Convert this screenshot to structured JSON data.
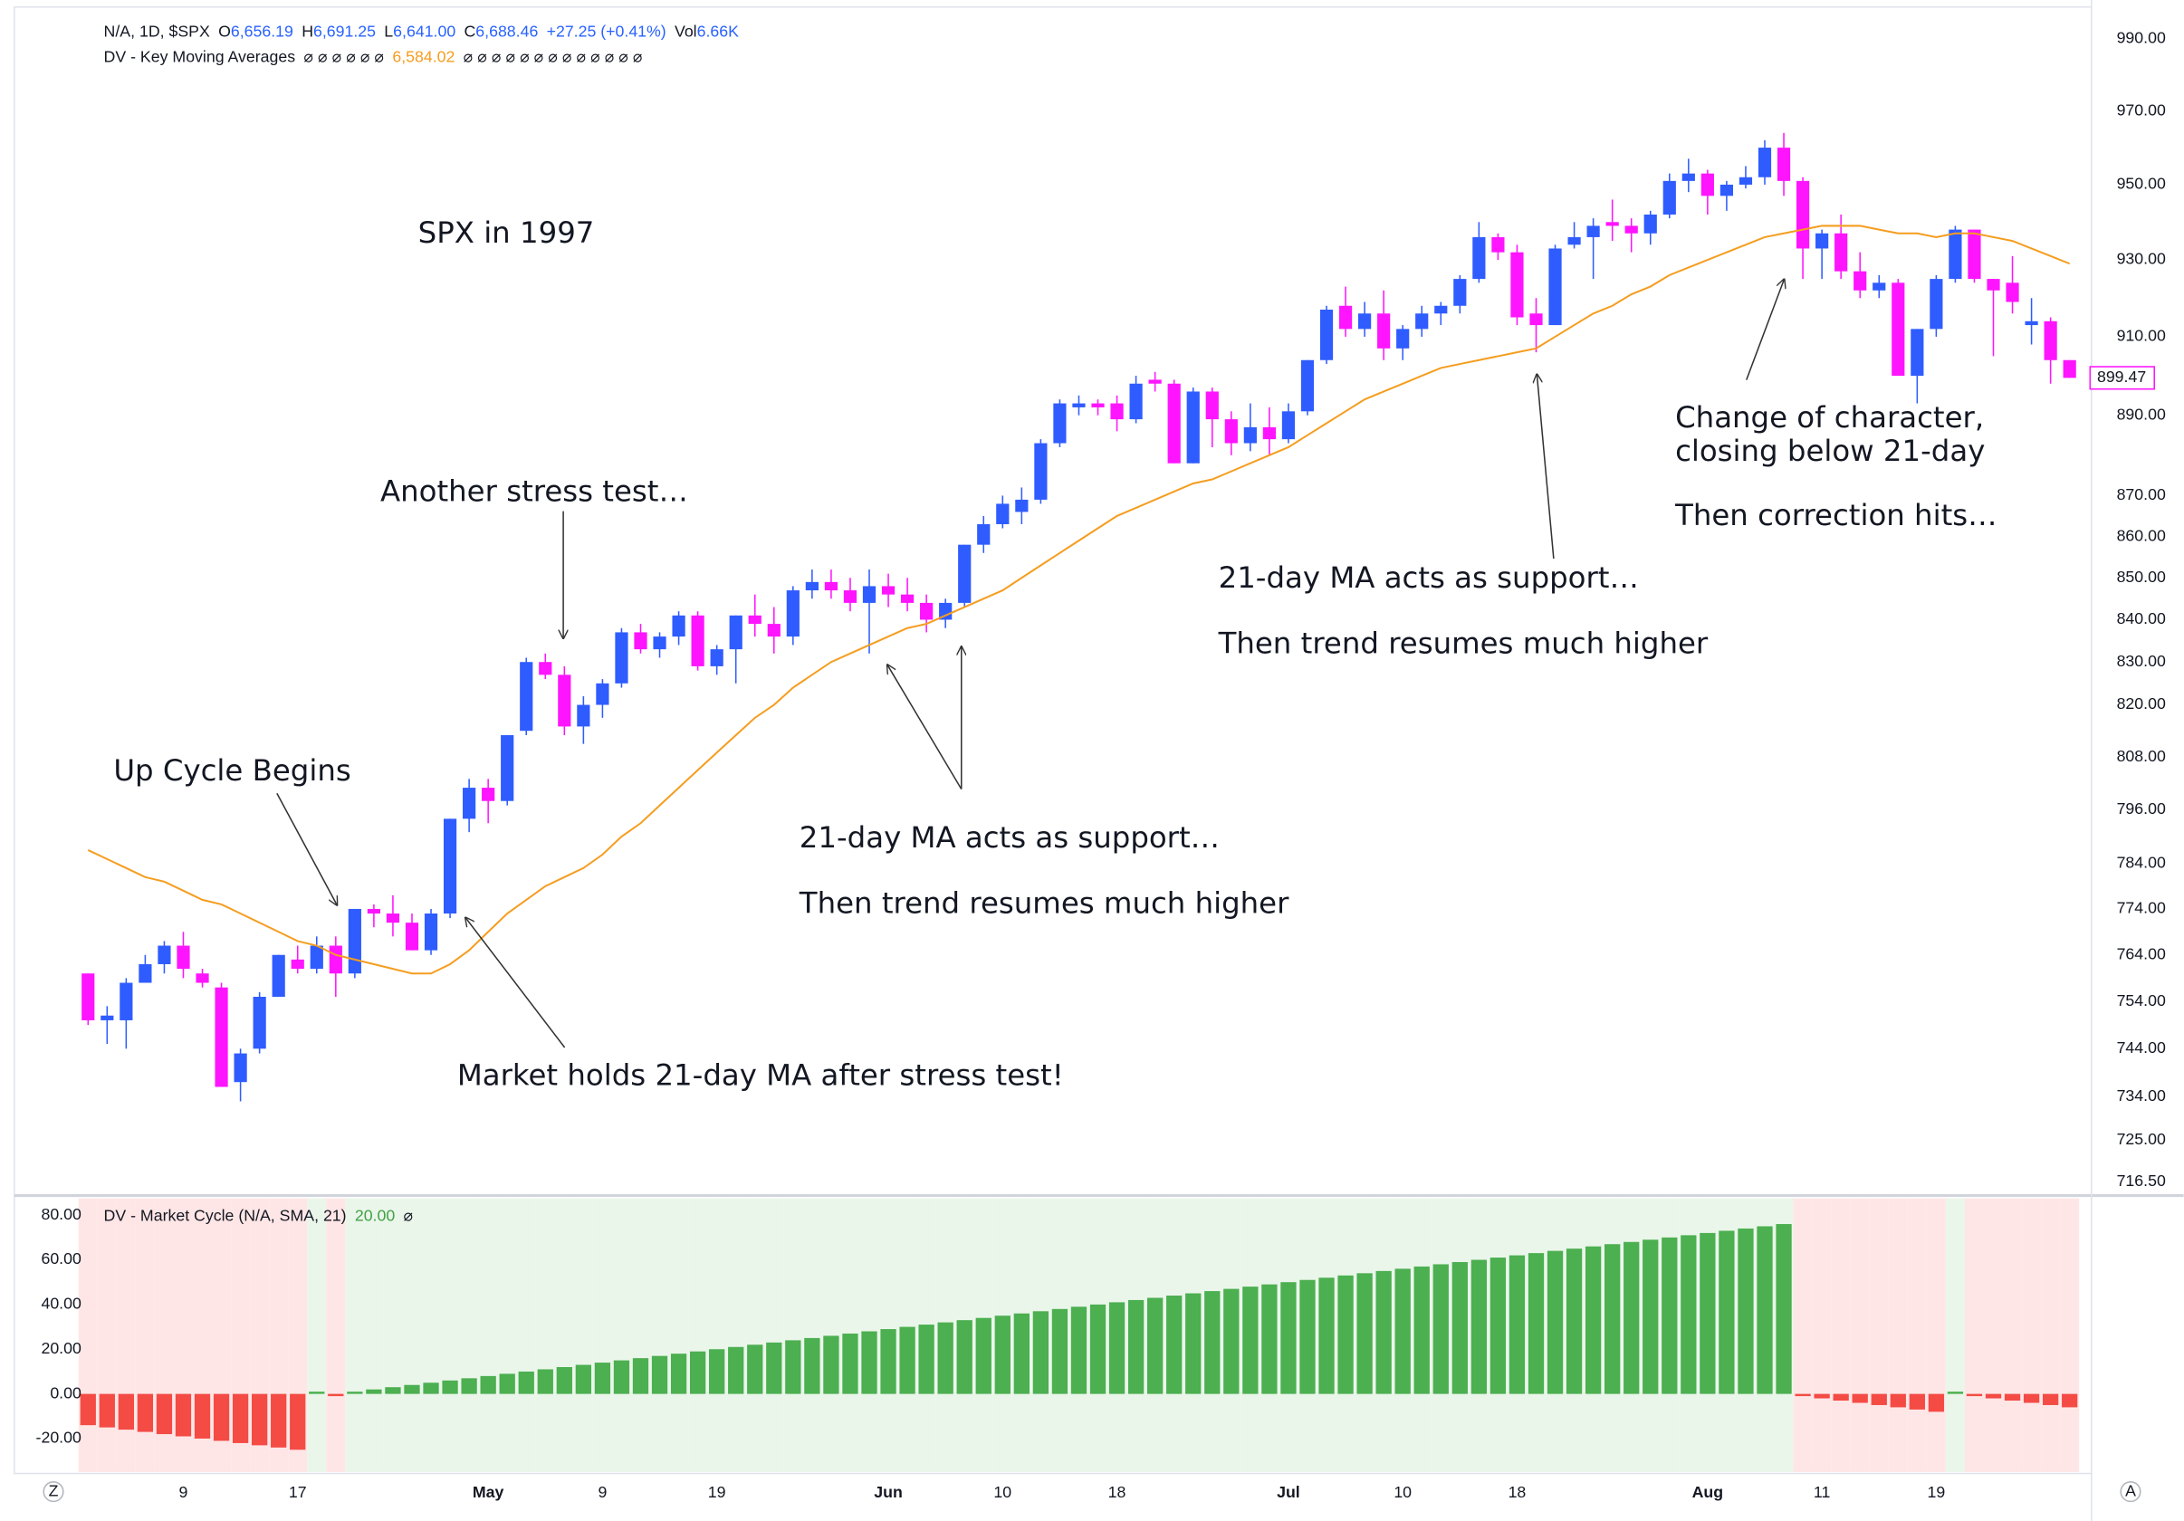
{
  "chart_data": [
    {
      "type": "candlestick",
      "legend": {
        "symbol": "N/A, 1D, $SPX",
        "open_label": "O",
        "open": "6,656.19",
        "high_label": "H",
        "high": "6,691.25",
        "low_label": "L",
        "low": "6,641.00",
        "close_label": "C",
        "close": "6,688.46",
        "change": "+27.25 (+0.41%)",
        "volume_label": "Vol",
        "volume": "6.66K"
      },
      "annotations": [
        "SPX in 1997",
        "Another stress test…",
        "Up Cycle Begins",
        "21-day MA acts as support…",
        "Then trend resumes much higher",
        "Market holds 21-day MA after stress test!",
        "21-day MA acts as support…",
        "Then trend resumes much higher",
        "Change of character,",
        "closing below 21-day",
        "Then correction hits…"
      ],
      "categories": [
        null,
        null,
        null,
        null,
        null,
        "9",
        null,
        null,
        null,
        null,
        null,
        "17",
        null,
        null,
        null,
        null,
        null,
        null,
        null,
        null,
        null,
        "May",
        null,
        null,
        null,
        null,
        null,
        "9",
        null,
        null,
        null,
        null,
        null,
        "19",
        null,
        null,
        null,
        null,
        null,
        null,
        null,
        null,
        "Jun",
        null,
        null,
        null,
        null,
        null,
        "10",
        null,
        null,
        null,
        null,
        null,
        "18",
        null,
        null,
        null,
        null,
        null,
        null,
        null,
        null,
        "Jul",
        null,
        null,
        null,
        null,
        null,
        "10",
        null,
        null,
        null,
        null,
        null,
        "18",
        null,
        null,
        null,
        null,
        null,
        null,
        null,
        null,
        null,
        "Aug",
        null,
        null,
        null,
        null,
        null,
        "11",
        null,
        null,
        null,
        null,
        null,
        "19",
        null,
        null,
        null,
        null,
        null,
        null,
        null
      ],
      "open": [
        760,
        750,
        750,
        758,
        762,
        766,
        760,
        757,
        737,
        744,
        755,
        763,
        761,
        766,
        760,
        774,
        773,
        771,
        765,
        773,
        794,
        801,
        798,
        814,
        830,
        827,
        815,
        820,
        825,
        837,
        833,
        836,
        841,
        829,
        833,
        841,
        839,
        836,
        847,
        849,
        847,
        844,
        848,
        846,
        844,
        840,
        844,
        858,
        863,
        866,
        869,
        883,
        892,
        893,
        893,
        889,
        899,
        898,
        878,
        896,
        889,
        883,
        887,
        884,
        891,
        904,
        918,
        912,
        916,
        907,
        912,
        916,
        918,
        925,
        936,
        932,
        916,
        913,
        934,
        936,
        940,
        939,
        937,
        942,
        951,
        953,
        947,
        950,
        952,
        960,
        951,
        933,
        937,
        927,
        922,
        924,
        900,
        912,
        925,
        938,
        925,
        924,
        913,
        914,
        904
      ],
      "high": [
        760,
        753,
        759,
        764,
        767,
        769,
        761,
        758,
        744,
        756,
        764,
        766,
        768,
        768,
        774,
        775,
        777,
        773,
        774,
        794,
        803,
        803,
        813,
        831,
        832,
        829,
        822,
        826,
        838,
        839,
        837,
        842,
        842,
        834,
        841,
        846,
        843,
        848,
        852,
        852,
        850,
        852,
        851,
        850,
        846,
        845,
        858,
        865,
        870,
        872,
        884,
        894,
        895,
        894,
        895,
        900,
        901,
        899,
        897,
        897,
        891,
        893,
        892,
        893,
        904,
        918,
        923,
        919,
        922,
        913,
        918,
        919,
        926,
        940,
        937,
        934,
        920,
        934,
        940,
        941,
        946,
        941,
        943,
        953,
        957,
        954,
        951,
        955,
        962,
        964,
        952,
        938,
        942,
        932,
        926,
        925,
        912,
        926,
        939,
        938,
        925,
        931,
        920,
        915,
        904
      ],
      "low": [
        749,
        745,
        744,
        758,
        760,
        759,
        757,
        736,
        733,
        743,
        755,
        760,
        760,
        755,
        759,
        770,
        768,
        765,
        764,
        772,
        791,
        793,
        797,
        813,
        826,
        813,
        811,
        817,
        824,
        832,
        831,
        834,
        828,
        827,
        825,
        836,
        832,
        834,
        845,
        845,
        842,
        832,
        843,
        842,
        837,
        838,
        843,
        856,
        862,
        863,
        868,
        882,
        890,
        890,
        886,
        888,
        896,
        878,
        878,
        882,
        880,
        881,
        880,
        883,
        890,
        903,
        910,
        910,
        904,
        904,
        910,
        913,
        916,
        924,
        930,
        913,
        906,
        913,
        933,
        925,
        935,
        932,
        934,
        941,
        948,
        942,
        943,
        949,
        950,
        947,
        925,
        925,
        925,
        920,
        920,
        900,
        893,
        910,
        924,
        924,
        905,
        916,
        908,
        898,
        899.47
      ],
      "close": [
        750,
        751,
        758,
        762,
        766,
        761,
        758,
        736,
        743,
        755,
        764,
        761,
        766,
        760,
        774,
        773,
        771,
        765,
        773,
        794,
        801,
        798,
        813,
        830,
        827,
        815,
        820,
        825,
        837,
        833,
        836,
        841,
        829,
        833,
        841,
        839,
        836,
        847,
        849,
        847,
        844,
        848,
        846,
        844,
        840,
        844,
        858,
        863,
        868,
        869,
        883,
        893,
        893,
        892,
        889,
        898,
        898,
        878,
        896,
        889,
        883,
        887,
        884,
        891,
        904,
        917,
        912,
        916,
        907,
        912,
        916,
        918,
        925,
        936,
        932,
        915,
        913,
        933,
        936,
        939,
        939,
        937,
        942,
        951,
        953,
        947,
        950,
        952,
        960,
        951,
        933,
        937,
        927,
        922,
        924,
        900,
        912,
        925,
        938,
        925,
        922,
        919,
        914,
        904,
        899.47
      ],
      "up_color": "#2f5cff",
      "down_color": "#ff14ff",
      "series": [
        {
          "name": "DV - Key Moving Averages",
          "color": "#f59d1f",
          "value_label": "6,584.02",
          "na_before": "⌀ ⌀ ⌀ ⌀ ⌀ ⌀",
          "na_after": "⌀ ⌀ ⌀ ⌀ ⌀ ⌀ ⌀ ⌀ ⌀ ⌀ ⌀ ⌀ ⌀",
          "values": [
            787,
            785,
            783,
            781,
            780,
            778,
            776,
            775,
            773,
            771,
            769,
            767,
            766,
            764,
            763,
            762,
            761,
            760,
            760,
            762,
            765,
            769,
            773,
            776,
            779,
            781,
            783,
            786,
            790,
            793,
            797,
            801,
            805,
            809,
            813,
            817,
            820,
            824,
            827,
            830,
            832,
            834,
            836,
            838,
            839,
            841,
            843,
            845,
            847,
            850,
            853,
            856,
            859,
            862,
            865,
            867,
            869,
            871,
            873,
            874,
            876,
            878,
            880,
            882,
            885,
            888,
            891,
            894,
            896,
            898,
            900,
            902,
            903,
            904,
            905,
            906,
            907,
            910,
            913,
            916,
            918,
            921,
            923,
            926,
            928,
            930,
            932,
            934,
            936,
            937,
            938,
            939,
            939,
            939,
            938,
            937,
            937,
            936,
            937,
            937,
            936,
            935,
            933,
            931,
            929
          ]
        }
      ],
      "log_scale": true,
      "grid": false,
      "ylim": [
        714,
        997
      ],
      "yticks": [
        {
          "value": 990,
          "label": "990.00"
        },
        {
          "value": 970,
          "label": "970.00"
        },
        {
          "value": 950,
          "label": "950.00"
        },
        {
          "value": 930,
          "label": "930.00"
        },
        {
          "value": 910,
          "label": "910.00"
        },
        {
          "value": 890,
          "label": "890.00"
        },
        {
          "value": 870,
          "label": "870.00"
        },
        {
          "value": 860,
          "label": "860.00"
        },
        {
          "value": 850,
          "label": "850.00"
        },
        {
          "value": 840,
          "label": "840.00"
        },
        {
          "value": 830,
          "label": "830.00"
        },
        {
          "value": 820,
          "label": "820.00"
        },
        {
          "value": 808,
          "label": "808.00"
        },
        {
          "value": 796,
          "label": "796.00"
        },
        {
          "value": 784,
          "label": "784.00"
        },
        {
          "value": 774,
          "label": "774.00"
        },
        {
          "value": 764,
          "label": "764.00"
        },
        {
          "value": 754,
          "label": "754.00"
        },
        {
          "value": 744,
          "label": "744.00"
        },
        {
          "value": 734,
          "label": "734.00"
        },
        {
          "value": 725,
          "label": "725.00"
        },
        {
          "value": 716.5,
          "label": "716.50"
        }
      ]
    },
    {
      "type": "bar",
      "title": "DV - Market Cycle (N/A, SMA, 21)",
      "title_value": "20.00",
      "na_marker": "⌀",
      "values": [
        -14,
        -15,
        -16,
        -17,
        -18,
        -19,
        -20,
        -21,
        -22,
        -23,
        -24,
        -25,
        1,
        -1,
        1,
        2,
        3,
        4,
        5,
        6,
        7,
        8,
        9,
        10,
        11,
        12,
        13,
        14,
        15,
        16,
        17,
        18,
        19,
        20,
        21,
        22,
        23,
        24,
        25,
        26,
        27,
        28,
        29,
        30,
        31,
        32,
        33,
        34,
        35,
        36,
        37,
        38,
        39,
        40,
        41,
        42,
        43,
        44,
        45,
        46,
        47,
        48,
        49,
        50,
        51,
        52,
        53,
        54,
        55,
        56,
        57,
        58,
        59,
        60,
        61,
        62,
        63,
        64,
        65,
        66,
        67,
        68,
        69,
        70,
        71,
        72,
        73,
        74,
        75,
        76,
        -1,
        -2,
        -3,
        -4,
        -5,
        -6,
        -7,
        -8,
        1,
        -1,
        -2,
        -3,
        -4,
        -5,
        -6
      ],
      "positive_color": "#4caf50",
      "negative_color": "#f44b45",
      "positive_zone_color": "#eaf6ea",
      "negative_zone_color": "#ffe6e6",
      "ylim": [
        -35,
        87.5
      ],
      "yticks": [
        {
          "value": 80,
          "label": "80.00"
        },
        {
          "value": 60,
          "label": "60.00"
        },
        {
          "value": 40,
          "label": "40.00"
        },
        {
          "value": 20,
          "label": "20.00"
        },
        {
          "value": 0,
          "label": "0.00"
        },
        {
          "value": -20,
          "label": "-20.00"
        }
      ]
    }
  ],
  "ui": {
    "left_button": "Z",
    "right_button": "A"
  }
}
